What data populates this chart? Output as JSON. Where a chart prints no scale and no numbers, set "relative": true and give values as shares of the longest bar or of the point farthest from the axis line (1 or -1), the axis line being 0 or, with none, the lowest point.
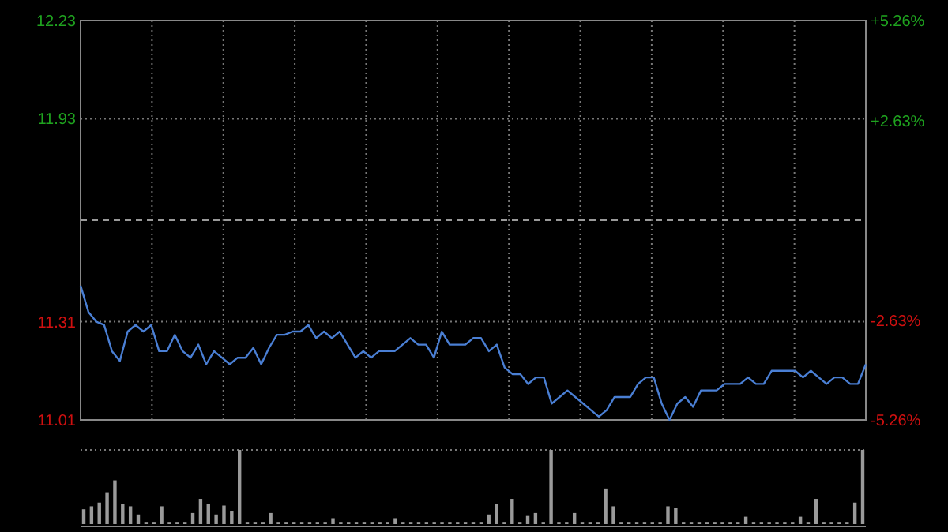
{
  "chart_data": [
    {
      "type": "line",
      "categories": [
        null,
        null,
        null,
        null,
        null,
        null,
        null,
        null,
        null,
        null,
        null,
        null,
        null,
        null,
        null,
        null,
        null,
        null,
        null,
        null,
        null,
        null,
        null,
        null,
        null,
        null,
        null,
        null,
        null,
        null,
        null,
        null,
        null,
        null,
        null,
        null,
        null,
        null,
        null,
        null,
        null,
        null,
        null,
        null,
        null,
        null,
        null,
        null,
        null,
        null,
        null,
        null,
        null,
        null,
        null,
        null,
        null,
        null,
        null,
        null,
        null,
        null,
        null,
        null,
        null,
        null,
        null,
        null,
        null,
        null,
        null,
        null,
        null,
        null,
        null,
        null,
        null,
        null,
        null,
        null,
        null,
        null,
        null,
        null,
        null,
        null,
        null,
        null,
        null,
        null,
        null,
        null,
        null,
        null,
        null,
        null,
        null,
        null,
        null,
        null,
        null
      ],
      "ylim": [
        11.01,
        12.23
      ],
      "yticks": [
        11.01,
        11.31,
        11.93,
        12.23
      ],
      "y2lim": [
        -5.26,
        5.26
      ],
      "y2ticks": [
        {
          "value": -5.26,
          "label": "-5.26%"
        },
        {
          "value": -2.63,
          "label": "-2.63%"
        },
        {
          "value": 2.63,
          "label": "+2.63%"
        },
        {
          "value": 5.26,
          "label": "+5.26%"
        }
      ],
      "grid": true,
      "tick_labels": "y",
      "ref_lines": [
        {
          "axis": "y",
          "value": 11.62,
          "line_style": "dashed",
          "color": "#9a9a9a"
        }
      ],
      "series": [
        {
          "color": "#4a7fd4",
          "values": [
            11.42,
            11.34,
            11.31,
            11.3,
            11.22,
            11.19,
            11.28,
            11.3,
            11.28,
            11.3,
            11.22,
            11.22,
            11.27,
            11.22,
            11.2,
            11.24,
            11.18,
            11.22,
            11.2,
            11.18,
            11.2,
            11.2,
            11.23,
            11.18,
            11.23,
            11.27,
            11.27,
            11.28,
            11.28,
            11.3,
            11.26,
            11.28,
            11.26,
            11.28,
            11.24,
            11.2,
            11.22,
            11.2,
            11.22,
            11.22,
            11.22,
            11.24,
            11.26,
            11.24,
            11.24,
            11.2,
            11.28,
            11.24,
            11.24,
            11.24,
            11.26,
            11.26,
            11.22,
            11.24,
            11.17,
            11.15,
            11.15,
            11.12,
            11.14,
            11.14,
            11.06,
            11.08,
            11.1,
            11.08,
            11.06,
            11.04,
            11.02,
            11.04,
            11.08,
            11.08,
            11.08,
            11.12,
            11.14,
            11.14,
            11.06,
            11.01,
            11.06,
            11.08,
            11.05,
            11.1,
            11.1,
            11.1,
            11.12,
            11.12,
            11.12,
            11.14,
            11.12,
            11.12,
            11.16,
            11.16,
            11.16,
            11.16,
            11.14,
            11.16,
            11.14,
            11.12,
            11.14,
            11.14,
            11.12,
            11.12,
            11.18
          ]
        }
      ]
    },
    {
      "type": "bar",
      "relative": true,
      "tick_labels": false,
      "categories": [
        null,
        null,
        null,
        null,
        null,
        null,
        null,
        null,
        null,
        null,
        null,
        null,
        null,
        null,
        null,
        null,
        null,
        null,
        null,
        null,
        null,
        null,
        null,
        null,
        null,
        null,
        null,
        null,
        null,
        null,
        null,
        null,
        null,
        null,
        null,
        null,
        null,
        null,
        null,
        null,
        null,
        null,
        null,
        null,
        null,
        null,
        null,
        null,
        null,
        null,
        null,
        null,
        null,
        null,
        null,
        null,
        null,
        null,
        null,
        null,
        null,
        null,
        null,
        null,
        null,
        null,
        null,
        null,
        null,
        null,
        null,
        null,
        null,
        null,
        null,
        null,
        null,
        null,
        null,
        null,
        null,
        null,
        null,
        null,
        null,
        null,
        null,
        null,
        null,
        null,
        null,
        null,
        null,
        null,
        null,
        null,
        null,
        null,
        null,
        null,
        null
      ],
      "series": [
        {
          "color": "#9a9a9a",
          "values": [
            0.2,
            0.24,
            0.29,
            0.43,
            0.59,
            0.27,
            0.24,
            0.13,
            0.03,
            0.03,
            0.24,
            0.03,
            0.03,
            0.03,
            0.15,
            0.34,
            0.27,
            0.13,
            0.25,
            0.17,
            1.0,
            0.03,
            0.03,
            0.03,
            0.15,
            0.03,
            0.03,
            0.03,
            0.03,
            0.03,
            0.03,
            0.03,
            0.08,
            0.03,
            0.03,
            0.03,
            0.03,
            0.03,
            0.03,
            0.03,
            0.08,
            0.03,
            0.03,
            0.03,
            0.03,
            0.03,
            0.03,
            0.03,
            0.03,
            0.03,
            0.03,
            0.03,
            0.13,
            0.27,
            0.03,
            0.34,
            0.03,
            0.11,
            0.15,
            0.03,
            1.0,
            0.03,
            0.03,
            0.15,
            0.03,
            0.03,
            0.03,
            0.48,
            0.24,
            0.03,
            0.03,
            0.03,
            0.03,
            0.03,
            0.03,
            0.24,
            0.22,
            0.03,
            0.03,
            0.03,
            0.03,
            0.03,
            0.03,
            0.03,
            0.03,
            0.1,
            0.03,
            0.03,
            0.03,
            0.03,
            0.03,
            0.03,
            0.1,
            0.03,
            0.34,
            0.03,
            0.03,
            0.03,
            0.03,
            0.29,
            1.0
          ]
        }
      ]
    }
  ]
}
